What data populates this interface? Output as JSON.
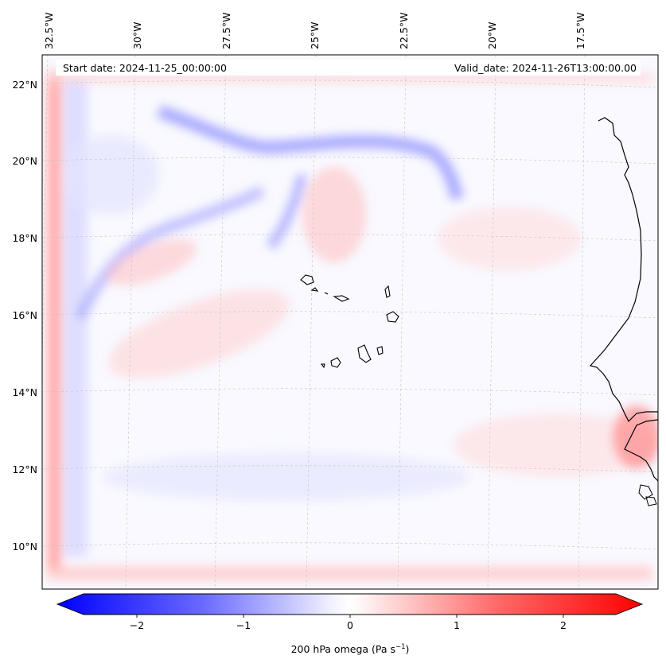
{
  "map": {
    "annotations": {
      "start": "Start date: 2024-11-25_00:00:00",
      "valid": "Valid_date: 2024-11-26T13:00:00.00"
    },
    "lon_labels": [
      "32.5°W",
      "30°W",
      "27.5°W",
      "25°W",
      "22.5°W",
      "20°W",
      "17.5°W"
    ],
    "lat_labels": [
      "22°N",
      "20°N",
      "18°N",
      "16°N",
      "14°N",
      "12°N",
      "10°N"
    ],
    "colorbar": {
      "ticks": [
        "−2",
        "−1",
        "0",
        "1",
        "2"
      ],
      "tick_values": [
        -2,
        -1,
        0,
        1,
        2
      ],
      "range": [
        -2.5,
        2.5
      ],
      "label_main": "200 hPa omega (Pa s",
      "label_sup": "−1",
      "label_close": ")",
      "colors": {
        "negative": "#0000ff",
        "zero": "#ffffff",
        "positive": "#ff0000"
      }
    },
    "coastline_color": "#000000",
    "grid_color": "#b8b8b8"
  }
}
